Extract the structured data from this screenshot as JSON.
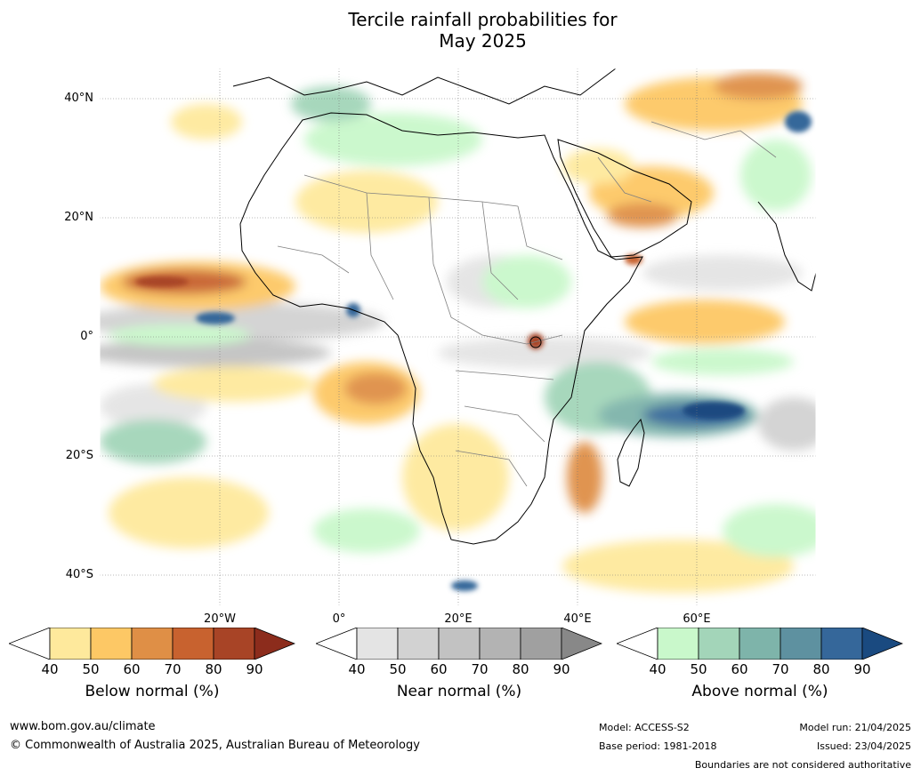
{
  "title": {
    "line1": "Tercile rainfall probabilities for",
    "line2": "May 2025"
  },
  "map": {
    "lat_labels": [
      "40°N",
      "20°N",
      "0°",
      "20°S",
      "40°S"
    ],
    "lon_labels": [
      "20°W",
      "0°",
      "20°E",
      "40°E",
      "60°E"
    ],
    "land_color": "#ffffff",
    "ocean_color": "#ffffff",
    "coastline_color": "#000000",
    "border_color": "#808080"
  },
  "colorbars": [
    {
      "id": "below",
      "title": "Below normal (%)",
      "ticks": [
        "40",
        "50",
        "60",
        "70",
        "80",
        "90"
      ],
      "colors": [
        "#ffffff",
        "#fee99c",
        "#fdc865",
        "#df8f46",
        "#c8622f",
        "#a84426",
        "#8c2c1c"
      ]
    },
    {
      "id": "near",
      "title": "Near normal (%)",
      "ticks": [
        "40",
        "50",
        "60",
        "70",
        "80",
        "90"
      ],
      "colors": [
        "#ffffff",
        "#e4e4e4",
        "#d2d2d2",
        "#c2c2c2",
        "#b3b3b3",
        "#a0a0a0",
        "#888888"
      ]
    },
    {
      "id": "above",
      "title": "Above normal (%)",
      "ticks": [
        "40",
        "50",
        "60",
        "70",
        "80",
        "90"
      ],
      "colors": [
        "#ffffff",
        "#c9f8cb",
        "#a3d5b9",
        "#7eb4aa",
        "#5e91a0",
        "#35679a",
        "#1a4a80"
      ]
    }
  ],
  "footer": {
    "website": "www.bom.gov.au/climate",
    "copyright": "© Commonwealth of Australia 2025, Australian Bureau of Meteorology",
    "model": "Model: ACCESS-S2",
    "base_period": "Base period: 1981-2018",
    "model_run": "Model run: 21/04/2025",
    "issued": "Issued: 23/04/2025",
    "disclaimer": "Boundaries are not considered authoritative"
  }
}
